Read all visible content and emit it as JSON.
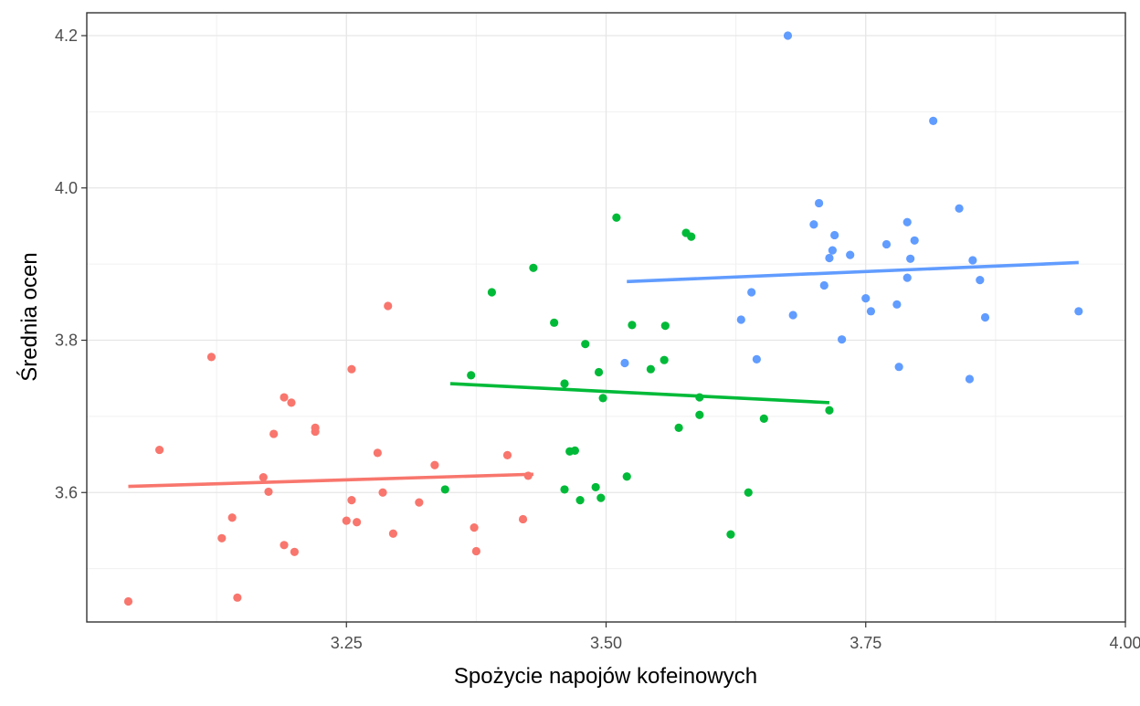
{
  "chart_data": {
    "type": "scatter",
    "title": "",
    "xlabel": "Spożycie napojów kofeinowych",
    "ylabel": "Średnia ocen",
    "xlim": [
      3.0,
      4.0
    ],
    "ylim": [
      3.43,
      4.23
    ],
    "x_ticks": [
      3.25,
      3.5,
      3.75,
      4.0
    ],
    "x_tick_labels": [
      "3.25",
      "3.50",
      "3.75",
      "4.00"
    ],
    "y_ticks": [
      3.6,
      3.8,
      4.0,
      4.2
    ],
    "y_tick_labels": [
      "3.6",
      "3.8",
      "4.0",
      "4.2"
    ],
    "grid": true,
    "legend": "none",
    "series": [
      {
        "color": "#F8766D",
        "points": [
          [
            3.04,
            3.457
          ],
          [
            3.07,
            3.656
          ],
          [
            3.12,
            3.778
          ],
          [
            3.13,
            3.54
          ],
          [
            3.14,
            3.567
          ],
          [
            3.145,
            3.462
          ],
          [
            3.17,
            3.62
          ],
          [
            3.175,
            3.601
          ],
          [
            3.18,
            3.677
          ],
          [
            3.19,
            3.725
          ],
          [
            3.19,
            3.531
          ],
          [
            3.197,
            3.718
          ],
          [
            3.2,
            3.522
          ],
          [
            3.22,
            3.68
          ],
          [
            3.22,
            3.685
          ],
          [
            3.255,
            3.762
          ],
          [
            3.25,
            3.563
          ],
          [
            3.255,
            3.59
          ],
          [
            3.26,
            3.561
          ],
          [
            3.28,
            3.652
          ],
          [
            3.285,
            3.6
          ],
          [
            3.29,
            3.845
          ],
          [
            3.295,
            3.546
          ],
          [
            3.32,
            3.587
          ],
          [
            3.335,
            3.636
          ],
          [
            3.373,
            3.554
          ],
          [
            3.375,
            3.523
          ],
          [
            3.405,
            3.649
          ],
          [
            3.42,
            3.565
          ],
          [
            3.425,
            3.622
          ]
        ],
        "fit": [
          [
            3.04,
            3.608
          ],
          [
            3.43,
            3.624
          ]
        ]
      },
      {
        "color": "#00BA38",
        "points": [
          [
            3.345,
            3.604
          ],
          [
            3.37,
            3.754
          ],
          [
            3.39,
            3.863
          ],
          [
            3.43,
            3.895
          ],
          [
            3.45,
            3.823
          ],
          [
            3.46,
            3.743
          ],
          [
            3.46,
            3.604
          ],
          [
            3.465,
            3.654
          ],
          [
            3.47,
            3.655
          ],
          [
            3.475,
            3.59
          ],
          [
            3.48,
            3.795
          ],
          [
            3.49,
            3.607
          ],
          [
            3.493,
            3.758
          ],
          [
            3.495,
            3.593
          ],
          [
            3.497,
            3.724
          ],
          [
            3.51,
            3.961
          ],
          [
            3.52,
            3.621
          ],
          [
            3.525,
            3.82
          ],
          [
            3.543,
            3.762
          ],
          [
            3.556,
            3.774
          ],
          [
            3.557,
            3.819
          ],
          [
            3.57,
            3.685
          ],
          [
            3.577,
            3.941
          ],
          [
            3.582,
            3.936
          ],
          [
            3.59,
            3.725
          ],
          [
            3.59,
            3.702
          ],
          [
            3.62,
            3.545
          ],
          [
            3.637,
            3.6
          ],
          [
            3.652,
            3.697
          ],
          [
            3.715,
            3.708
          ]
        ],
        "fit": [
          [
            3.35,
            3.743
          ],
          [
            3.715,
            3.718
          ]
        ]
      },
      {
        "color": "#619CFF",
        "points": [
          [
            3.518,
            3.77
          ],
          [
            3.63,
            3.827
          ],
          [
            3.64,
            3.863
          ],
          [
            3.645,
            3.775
          ],
          [
            3.675,
            4.2
          ],
          [
            3.68,
            3.833
          ],
          [
            3.7,
            3.952
          ],
          [
            3.705,
            3.98
          ],
          [
            3.71,
            3.872
          ],
          [
            3.715,
            3.908
          ],
          [
            3.718,
            3.918
          ],
          [
            3.72,
            3.938
          ],
          [
            3.727,
            3.801
          ],
          [
            3.735,
            3.912
          ],
          [
            3.75,
            3.855
          ],
          [
            3.755,
            3.838
          ],
          [
            3.77,
            3.926
          ],
          [
            3.78,
            3.847
          ],
          [
            3.782,
            3.765
          ],
          [
            3.79,
            3.955
          ],
          [
            3.79,
            3.882
          ],
          [
            3.793,
            3.907
          ],
          [
            3.797,
            3.931
          ],
          [
            3.815,
            4.088
          ],
          [
            3.84,
            3.973
          ],
          [
            3.85,
            3.749
          ],
          [
            3.853,
            3.905
          ],
          [
            3.86,
            3.879
          ],
          [
            3.865,
            3.83
          ],
          [
            3.955,
            3.838
          ]
        ],
        "fit": [
          [
            3.52,
            3.877
          ],
          [
            3.955,
            3.902
          ]
        ]
      }
    ]
  }
}
